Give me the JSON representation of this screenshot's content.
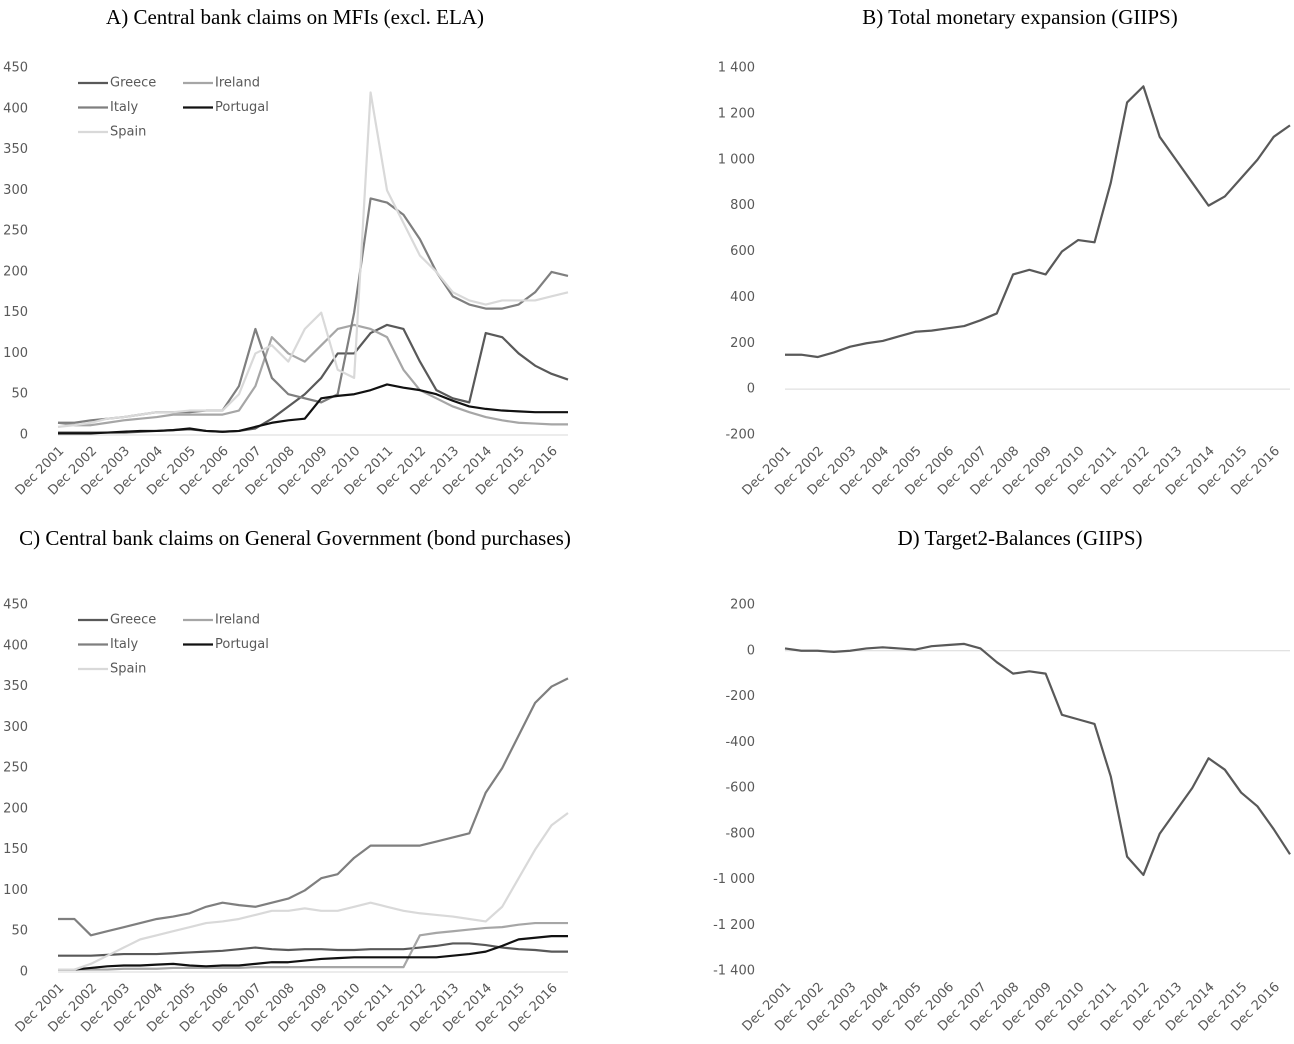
{
  "chart_data": [
    {
      "type": "line",
      "title": "A) Central bank claims on MFIs (excl. ELA)",
      "categories": [
        "Dec 2001",
        null,
        "Dec 2002",
        null,
        "Dec 2003",
        null,
        "Dec 2004",
        null,
        "Dec 2005",
        null,
        "Dec 2006",
        null,
        "Dec 2007",
        null,
        "Dec 2008",
        null,
        "Dec 2009",
        null,
        "Dec 2010",
        null,
        "Dec 2011",
        null,
        "Dec 2012",
        null,
        "Dec 2013",
        null,
        "Dec 2014",
        null,
        "Dec 2015",
        null,
        "Dec 2016",
        null
      ],
      "series": [
        {
          "name": "Greece",
          "color": "#595959",
          "values": [
            3,
            3,
            3,
            3,
            3,
            4,
            5,
            6,
            7,
            5,
            4,
            5,
            8,
            20,
            35,
            50,
            70,
            100,
            100,
            125,
            135,
            130,
            90,
            55,
            45,
            40,
            125,
            120,
            100,
            85,
            75,
            68
          ]
        },
        {
          "name": "Ireland",
          "color": "#a6a6a6",
          "values": [
            15,
            12,
            12,
            15,
            18,
            20,
            22,
            25,
            25,
            25,
            25,
            30,
            60,
            120,
            100,
            90,
            110,
            130,
            135,
            130,
            120,
            80,
            55,
            45,
            35,
            28,
            22,
            18,
            15,
            14,
            13,
            13
          ]
        },
        {
          "name": "Italy",
          "color": "#7f7f7f",
          "values": [
            15,
            15,
            18,
            20,
            22,
            25,
            28,
            28,
            28,
            30,
            30,
            60,
            130,
            70,
            50,
            45,
            40,
            50,
            150,
            290,
            285,
            270,
            240,
            200,
            170,
            160,
            155,
            155,
            160,
            175,
            200,
            195
          ]
        },
        {
          "name": "Portugal",
          "color": "#111111",
          "values": [
            2,
            2,
            2,
            3,
            4,
            5,
            5,
            6,
            8,
            5,
            4,
            5,
            10,
            15,
            18,
            20,
            45,
            48,
            50,
            55,
            62,
            58,
            55,
            50,
            42,
            35,
            32,
            30,
            29,
            28,
            28,
            28
          ]
        },
        {
          "name": "Spain",
          "color": "#d9d9d9",
          "values": [
            10,
            12,
            15,
            20,
            22,
            25,
            28,
            28,
            30,
            30,
            30,
            50,
            100,
            110,
            90,
            130,
            150,
            80,
            70,
            420,
            300,
            260,
            220,
            200,
            175,
            165,
            160,
            165,
            165,
            165,
            170,
            175
          ]
        }
      ],
      "ylim": [
        0,
        450
      ],
      "yticks": [
        0,
        50,
        100,
        150,
        200,
        250,
        300,
        350,
        400,
        450
      ],
      "legend": "upper left"
    },
    {
      "type": "line",
      "title": "B) Total monetary expansion (GIIPS)",
      "categories": [
        "Dec 2001",
        null,
        "Dec 2002",
        null,
        "Dec 2003",
        null,
        "Dec 2004",
        null,
        "Dec 2005",
        null,
        "Dec 2006",
        null,
        "Dec 2007",
        null,
        "Dec 2008",
        null,
        "Dec 2009",
        null,
        "Dec 2010",
        null,
        "Dec 2011",
        null,
        "Dec 2012",
        null,
        "Dec 2013",
        null,
        "Dec 2014",
        null,
        "Dec 2015",
        null,
        "Dec 2016",
        null
      ],
      "series": [
        {
          "name": "GIIPS",
          "color": "#595959",
          "values": [
            150,
            150,
            140,
            160,
            185,
            200,
            210,
            230,
            250,
            255,
            265,
            275,
            300,
            330,
            500,
            520,
            500,
            600,
            650,
            640,
            900,
            1250,
            1320,
            1100,
            1000,
            900,
            800,
            840,
            920,
            1000,
            1100,
            1150
          ]
        }
      ],
      "ylim": [
        -200,
        1400
      ],
      "yticks": [
        -200,
        0,
        200,
        400,
        600,
        800,
        {
          "value": 1000,
          "label": "1 000"
        },
        {
          "value": 1200,
          "label": "1 200"
        },
        {
          "value": 1400,
          "label": "1 400"
        }
      ]
    },
    {
      "type": "line",
      "title": "C) Central bank claims on General Government (bond purchases)",
      "categories": [
        "Dec 2001",
        null,
        "Dec 2002",
        null,
        "Dec 2003",
        null,
        "Dec 2004",
        null,
        "Dec 2005",
        null,
        "Dec 2006",
        null,
        "Dec 2007",
        null,
        "Dec 2008",
        null,
        "Dec 2009",
        null,
        "Dec 2010",
        null,
        "Dec 2011",
        null,
        "Dec 2012",
        null,
        "Dec 2013",
        null,
        "Dec 2014",
        null,
        "Dec 2015",
        null,
        "Dec 2016",
        null
      ],
      "series": [
        {
          "name": "Greece",
          "color": "#595959",
          "values": [
            20,
            20,
            20,
            21,
            22,
            22,
            22,
            23,
            24,
            25,
            26,
            28,
            30,
            28,
            27,
            28,
            28,
            27,
            27,
            28,
            28,
            28,
            30,
            32,
            35,
            35,
            33,
            30,
            28,
            27,
            25,
            25
          ]
        },
        {
          "name": "Ireland",
          "color": "#a6a6a6",
          "values": [
            3,
            3,
            3,
            3,
            4,
            4,
            4,
            5,
            5,
            5,
            5,
            5,
            6,
            6,
            6,
            6,
            6,
            6,
            6,
            6,
            6,
            6,
            45,
            48,
            50,
            52,
            54,
            55,
            58,
            60,
            60,
            60
          ]
        },
        {
          "name": "Italy",
          "color": "#7f7f7f",
          "values": [
            65,
            65,
            45,
            50,
            55,
            60,
            65,
            68,
            72,
            80,
            85,
            82,
            80,
            85,
            90,
            100,
            115,
            120,
            140,
            155,
            155,
            155,
            155,
            160,
            165,
            170,
            220,
            250,
            290,
            330,
            350,
            360
          ]
        },
        {
          "name": "Portugal",
          "color": "#111111",
          "values": [
            3,
            3,
            5,
            7,
            8,
            8,
            9,
            10,
            8,
            7,
            8,
            8,
            10,
            12,
            12,
            14,
            16,
            17,
            18,
            18,
            18,
            18,
            18,
            18,
            20,
            22,
            25,
            32,
            40,
            42,
            44,
            44
          ]
        },
        {
          "name": "Spain",
          "color": "#d9d9d9",
          "values": [
            3,
            3,
            10,
            20,
            30,
            40,
            45,
            50,
            55,
            60,
            62,
            65,
            70,
            75,
            75,
            78,
            75,
            75,
            80,
            85,
            80,
            75,
            72,
            70,
            68,
            65,
            62,
            80,
            115,
            150,
            180,
            195
          ]
        }
      ],
      "ylim": [
        0,
        450
      ],
      "yticks": [
        0,
        50,
        100,
        150,
        200,
        250,
        300,
        350,
        400,
        450
      ],
      "legend": "upper left"
    },
    {
      "type": "line",
      "title": "D) Target2-Balances (GIIPS)",
      "categories": [
        "Dec 2001",
        null,
        "Dec 2002",
        null,
        "Dec 2003",
        null,
        "Dec 2004",
        null,
        "Dec 2005",
        null,
        "Dec 2006",
        null,
        "Dec 2007",
        null,
        "Dec 2008",
        null,
        "Dec 2009",
        null,
        "Dec 2010",
        null,
        "Dec 2011",
        null,
        "Dec 2012",
        null,
        "Dec 2013",
        null,
        "Dec 2014",
        null,
        "Dec 2015",
        null,
        "Dec 2016",
        null
      ],
      "series": [
        {
          "name": "GIIPS",
          "color": "#595959",
          "values": [
            10,
            0,
            0,
            -5,
            0,
            10,
            15,
            10,
            5,
            20,
            25,
            30,
            10,
            -50,
            -100,
            -90,
            -100,
            -280,
            -300,
            -320,
            -550,
            -900,
            -980,
            -800,
            -700,
            -600,
            -470,
            -520,
            -620,
            -680,
            -780,
            -890
          ]
        }
      ],
      "ylim": [
        -1400,
        200
      ],
      "yticks": [
        {
          "value": -1400,
          "label": "-1 400"
        },
        {
          "value": -1200,
          "label": "-1 200"
        },
        {
          "value": -1000,
          "label": "-1 000"
        },
        -800,
        -600,
        -400,
        -200,
        0,
        200
      ]
    }
  ]
}
